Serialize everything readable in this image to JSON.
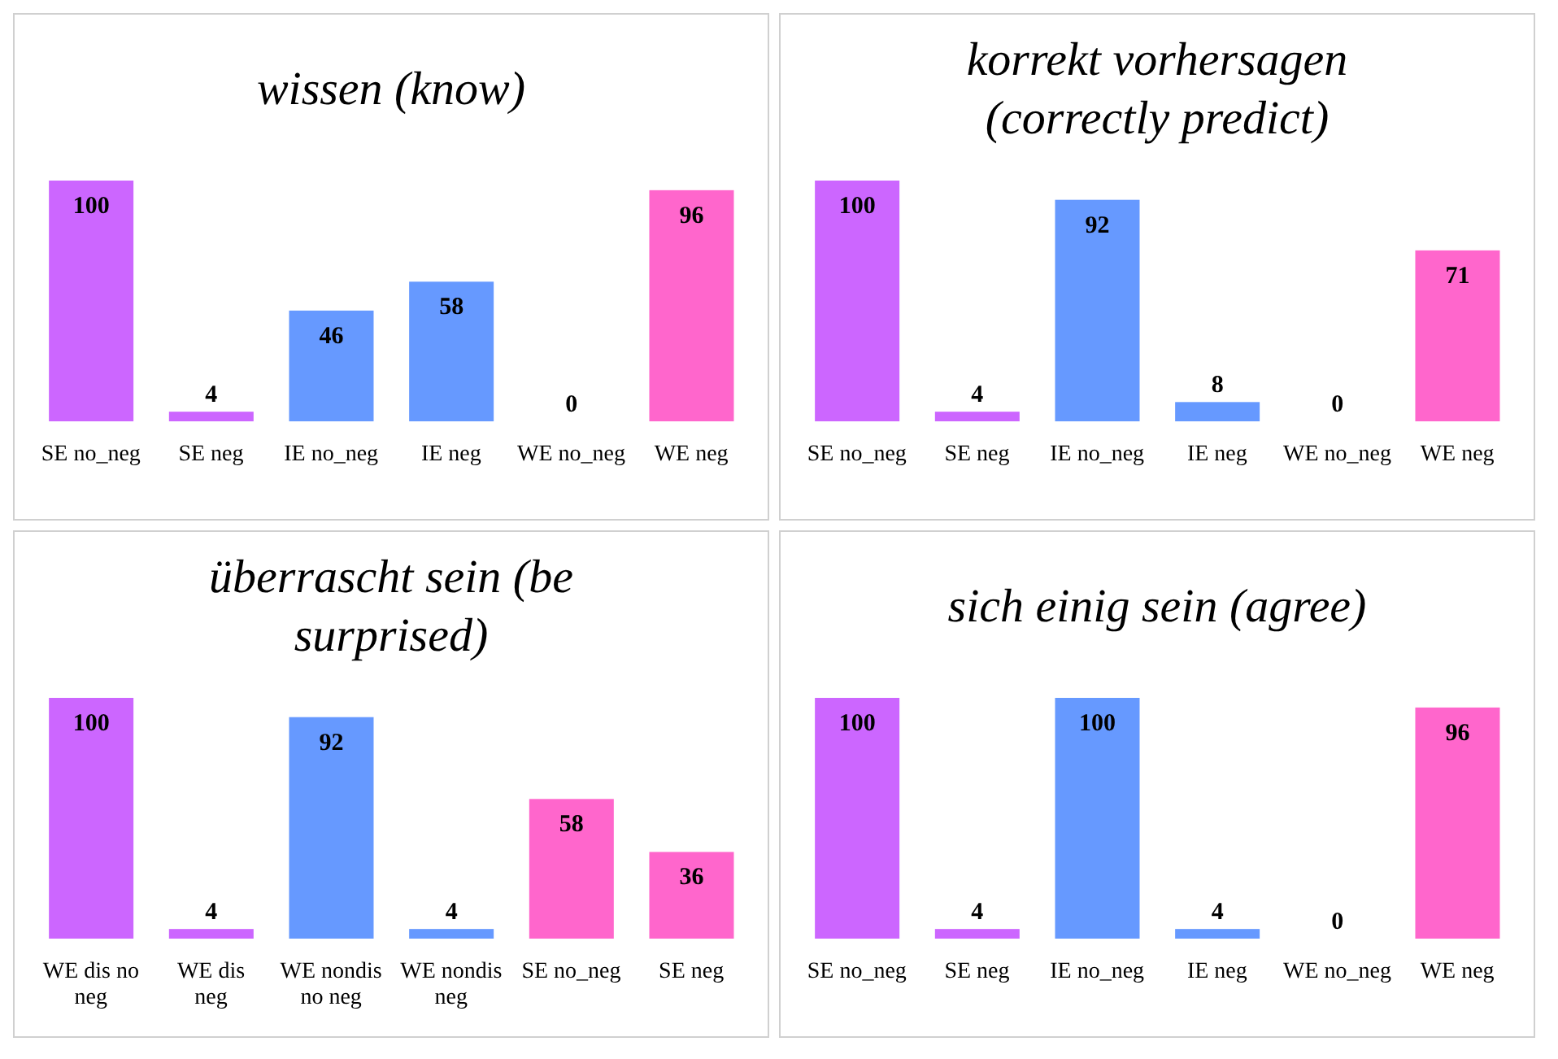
{
  "chart_data": [
    {
      "type": "bar",
      "title": "wissen (know)",
      "categories": [
        "SE no_neg",
        "SE neg",
        "IE no_neg",
        "IE neg",
        "WE no_neg",
        "WE neg"
      ],
      "values": [
        100,
        4,
        46,
        58,
        0,
        96
      ],
      "colors": [
        "#cc66ff",
        "#cc66ff",
        "#6699ff",
        "#6699ff",
        "#ff66cc",
        "#ff66cc"
      ],
      "data_labels": true
    },
    {
      "type": "bar",
      "title": "korrekt vorhersagen (correctly predict)",
      "categories": [
        "SE no_neg",
        "SE neg",
        "IE no_neg",
        "IE neg",
        "WE no_neg",
        "WE neg"
      ],
      "values": [
        100,
        4,
        92,
        8,
        0,
        71
      ],
      "colors": [
        "#cc66ff",
        "#cc66ff",
        "#6699ff",
        "#6699ff",
        "#ff66cc",
        "#ff66cc"
      ],
      "data_labels": true
    },
    {
      "type": "bar",
      "title": "überrascht sein (be surprised)",
      "categories": [
        "WE dis no neg",
        "WE dis neg",
        "WE nondis no neg",
        "WE nondis neg",
        "SE no_neg",
        "SE neg"
      ],
      "values": [
        100,
        4,
        92,
        4,
        58,
        36
      ],
      "colors": [
        "#cc66ff",
        "#cc66ff",
        "#6699ff",
        "#6699ff",
        "#ff66cc",
        "#ff66cc"
      ],
      "data_labels": true
    },
    {
      "type": "bar",
      "title": "sich einig sein (agree)",
      "categories": [
        "SE no_neg",
        "SE neg",
        "IE no_neg",
        "IE neg",
        "WE no_neg",
        "WE neg"
      ],
      "values": [
        100,
        4,
        100,
        4,
        0,
        96
      ],
      "colors": [
        "#cc66ff",
        "#cc66ff",
        "#6699ff",
        "#6699ff",
        "#ff66cc",
        "#ff66cc"
      ],
      "data_labels": true
    }
  ]
}
